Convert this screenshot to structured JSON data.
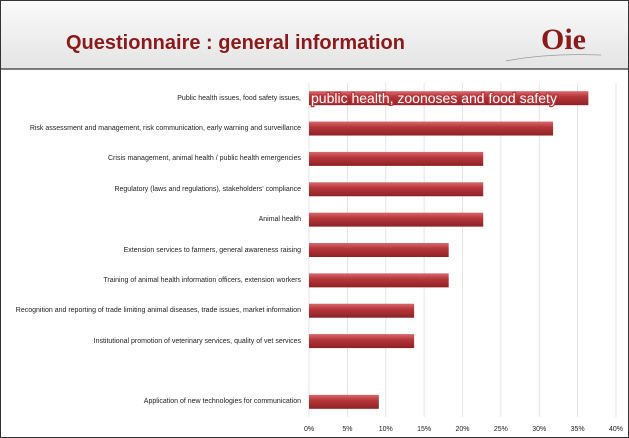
{
  "logo": "Oie",
  "chart_data": {
    "type": "hbar",
    "title": "Questionnaire : general information",
    "annotation": "public health, zoonoses and food safety",
    "categories": [
      "Public health issues, food safety issues,",
      "Risk assessment and management, risk communication, early warning and surveillance",
      "Crisis management, animal health / public health emergencies",
      "Regulatory (laws and regulations), stakeholders' compliance",
      "Animal health",
      "Extension services to farmers, general awareness raising",
      "Training of animal health information officers, extension workers",
      "Recognition and reporting of trade limiting animal diseases, trade issues, market information",
      "Institutional promotion of veterinary services, quality of vet services",
      null,
      "Application of new technologies for communication"
    ],
    "values": [
      36.4,
      31.8,
      22.7,
      22.7,
      22.7,
      18.2,
      18.2,
      13.7,
      13.7,
      null,
      9.1
    ],
    "color": "#b5363a",
    "xlim": [
      0,
      40
    ],
    "xticks": [
      {
        "value": 0,
        "label": "0%"
      },
      {
        "value": 5,
        "label": "5%"
      },
      {
        "value": 10,
        "label": "10%"
      },
      {
        "value": 15,
        "label": "15%"
      },
      {
        "value": 20,
        "label": "20%"
      },
      {
        "value": 25,
        "label": "25%"
      },
      {
        "value": 30,
        "label": "30%"
      },
      {
        "value": 35,
        "label": "35%"
      },
      {
        "value": 40,
        "label": "40%"
      }
    ],
    "grid": true
  }
}
